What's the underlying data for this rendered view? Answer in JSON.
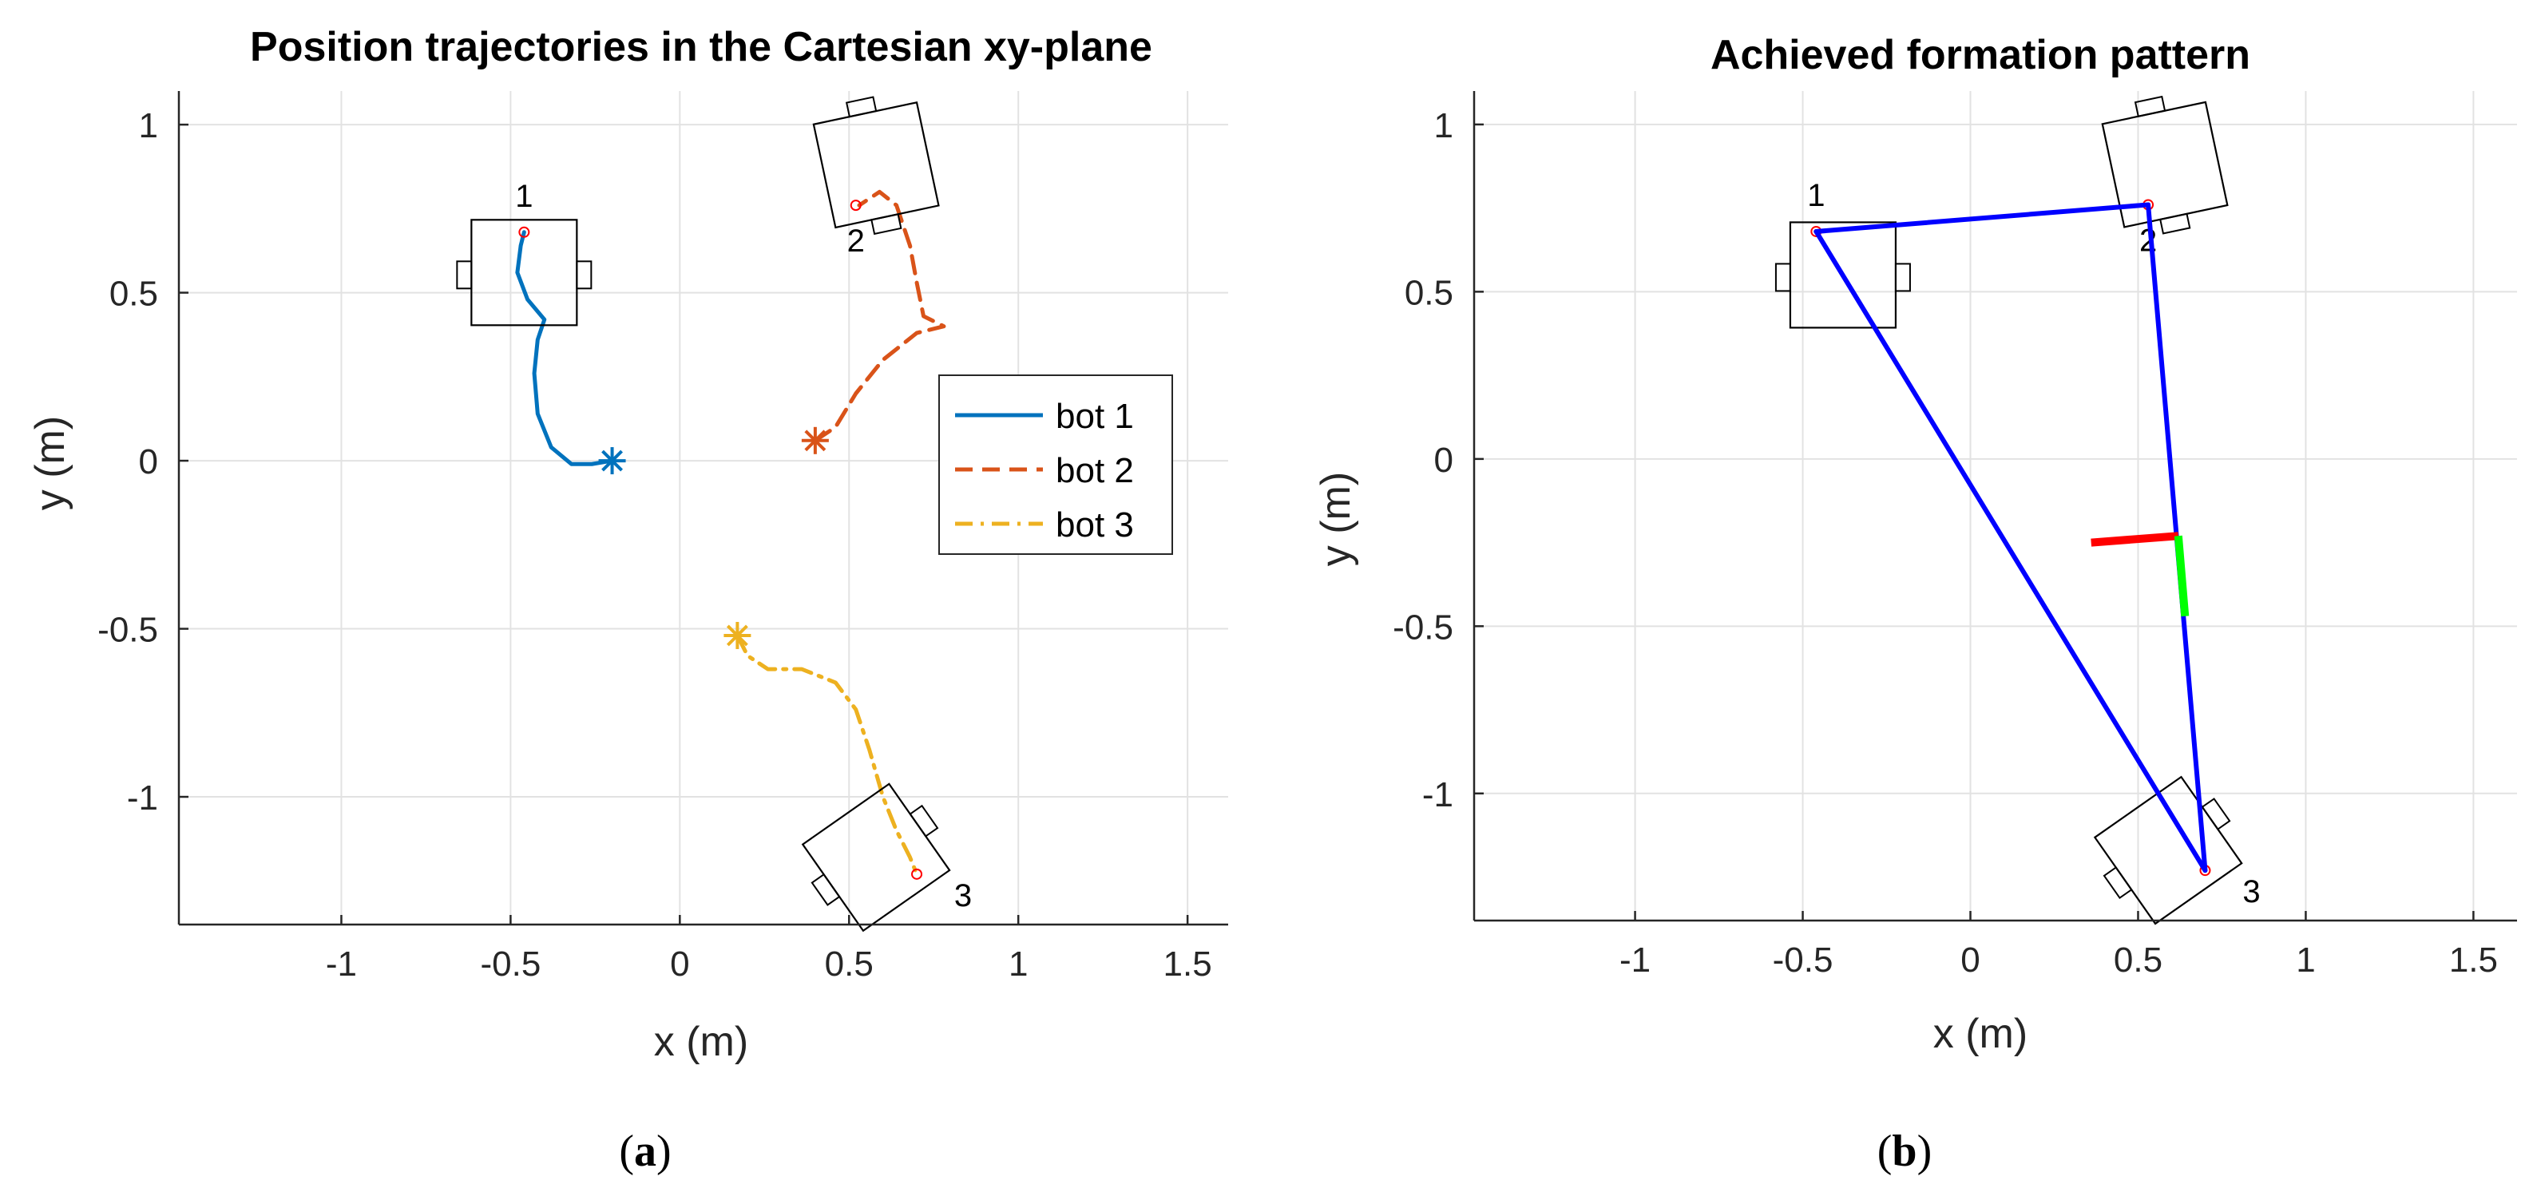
{
  "chart_data": [
    {
      "id": "a",
      "type": "line",
      "title": "Position trajectories in the Cartesian xy-plane",
      "xlabel": "x (m)",
      "ylabel": "y (m)",
      "xlim": [
        -1.48,
        1.62
      ],
      "ylim": [
        -1.38,
        1.1
      ],
      "xticks": [
        -1,
        -0.5,
        0,
        0.5,
        1,
        1.5
      ],
      "xtick_labels": [
        "-1",
        "-0.5",
        "0",
        "0.5",
        "1",
        "1.5"
      ],
      "yticks": [
        -1,
        -0.5,
        0,
        0.5,
        1
      ],
      "ytick_labels": [
        "-1",
        "-0.5",
        "0",
        "0.5",
        "1"
      ],
      "grid": true,
      "legend_position": "right-middle",
      "caption_letter": "a",
      "series": [
        {
          "name": "bot 1",
          "color": "#0072BD",
          "dash": "solid",
          "start": [
            -0.2,
            0.0
          ],
          "x": [
            -0.2,
            -0.26,
            -0.32,
            -0.38,
            -0.42,
            -0.43,
            -0.42,
            -0.4,
            -0.45,
            -0.48,
            -0.47,
            -0.46
          ],
          "y": [
            0.0,
            -0.01,
            -0.01,
            0.04,
            0.14,
            0.26,
            0.36,
            0.42,
            0.48,
            0.56,
            0.64,
            0.68
          ]
        },
        {
          "name": "bot 2",
          "color": "#D95319",
          "dash": "dashed",
          "start": [
            0.4,
            0.06
          ],
          "x": [
            0.4,
            0.46,
            0.52,
            0.6,
            0.7,
            0.78,
            0.72,
            0.7,
            0.68,
            0.64,
            0.59,
            0.53
          ],
          "y": [
            0.06,
            0.1,
            0.2,
            0.3,
            0.38,
            0.4,
            0.43,
            0.53,
            0.64,
            0.76,
            0.8,
            0.76
          ]
        },
        {
          "name": "bot 3",
          "color": "#EDB120",
          "dash": "dashdot",
          "start": [
            0.17,
            -0.52
          ],
          "x": [
            0.17,
            0.2,
            0.26,
            0.36,
            0.46,
            0.52,
            0.56,
            0.6,
            0.64,
            0.68,
            0.7
          ],
          "y": [
            -0.52,
            -0.58,
            -0.62,
            -0.62,
            -0.66,
            -0.74,
            -0.86,
            -1.0,
            -1.1,
            -1.18,
            -1.23
          ]
        }
      ],
      "robots": [
        {
          "label": "1",
          "center": [
            -0.46,
            0.56
          ],
          "heading_deg": 90,
          "marker": [
            -0.46,
            0.68
          ]
        },
        {
          "label": "2",
          "center": [
            0.58,
            0.88
          ],
          "heading_deg": 12,
          "marker": [
            0.52,
            0.76
          ]
        },
        {
          "label": "3",
          "center": [
            0.58,
            -1.18
          ],
          "heading_deg": -55,
          "marker": [
            0.7,
            -1.23
          ]
        }
      ]
    },
    {
      "id": "b",
      "type": "line",
      "title": "Achieved formation pattern",
      "xlabel": "x (m)",
      "ylabel": "y (m)",
      "xlim": [
        -1.48,
        1.63
      ],
      "ylim": [
        -1.38,
        1.1
      ],
      "xticks": [
        -1,
        -0.5,
        0,
        0.5,
        1,
        1.5
      ],
      "xtick_labels": [
        "-1",
        "-0.5",
        "0",
        "0.5",
        "1",
        "1.5"
      ],
      "yticks": [
        -1,
        -0.5,
        0,
        0.5,
        1
      ],
      "ytick_labels": [
        "-1",
        "-0.5",
        "0",
        "0.5",
        "1"
      ],
      "grid": true,
      "caption_letter": "b",
      "formation": {
        "color": "#0000FF",
        "vertices": [
          [
            -0.46,
            0.68
          ],
          [
            0.53,
            0.76
          ],
          [
            0.7,
            -1.23
          ]
        ]
      },
      "centroid_frame": {
        "origin": [
          0.62,
          -0.23
        ],
        "x_axis_end": [
          0.36,
          -0.25
        ],
        "x_color": "#FF0000",
        "y_axis_end": [
          0.64,
          -0.47
        ],
        "y_color": "#00FF00"
      },
      "robots": [
        {
          "label": "1",
          "center": [
            -0.38,
            0.55
          ],
          "heading_deg": 90,
          "marker": [
            -0.46,
            0.68
          ]
        },
        {
          "label": "2",
          "center": [
            0.58,
            0.88
          ],
          "heading_deg": 12,
          "marker": [
            0.53,
            0.76
          ]
        },
        {
          "label": "3",
          "center": [
            0.59,
            -1.17
          ],
          "heading_deg": -55,
          "marker": [
            0.7,
            -1.23
          ]
        }
      ]
    }
  ]
}
